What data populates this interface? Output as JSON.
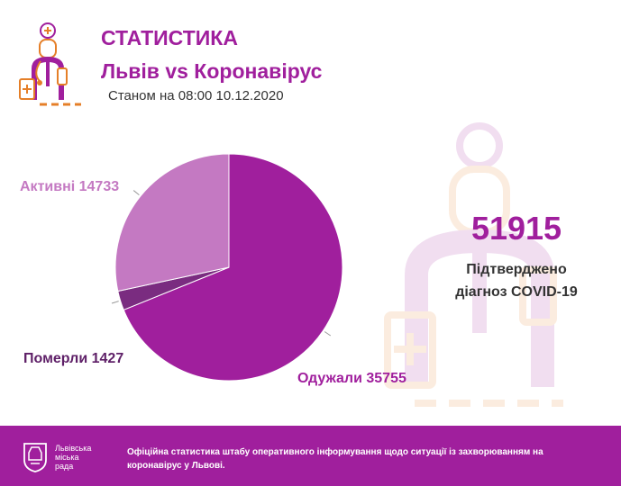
{
  "header": {
    "title": "СТАТИСТИКА",
    "subtitle": "Львів vs Коронавірус",
    "date": "Станом на 08:00 10.12.2020"
  },
  "labels": {
    "active": "Активні 14733",
    "dead": "Померли 1427",
    "recovered": "Одужали 35755"
  },
  "confirmed": {
    "number": "51915",
    "line1": "Підтверджено",
    "line2": "діагноз COVID-19"
  },
  "footer": {
    "org_line1": "Львівська",
    "org_line2": "міська",
    "org_line3": "рада",
    "note_line1": "Офіційна статистика штабу оперативного інформування щодо ситуації із захворюванням на",
    "note_line2": "коронавірус у Львові."
  },
  "colors": {
    "brand": "#a01f9d",
    "active": "#c479c2",
    "dead": "#7a2c80",
    "recovered": "#a01f9d"
  },
  "chart_data": {
    "type": "pie",
    "title": "",
    "categories": [
      "Одужали",
      "Померли",
      "Активні"
    ],
    "values": [
      35755,
      1427,
      14733
    ],
    "legend": "none"
  }
}
